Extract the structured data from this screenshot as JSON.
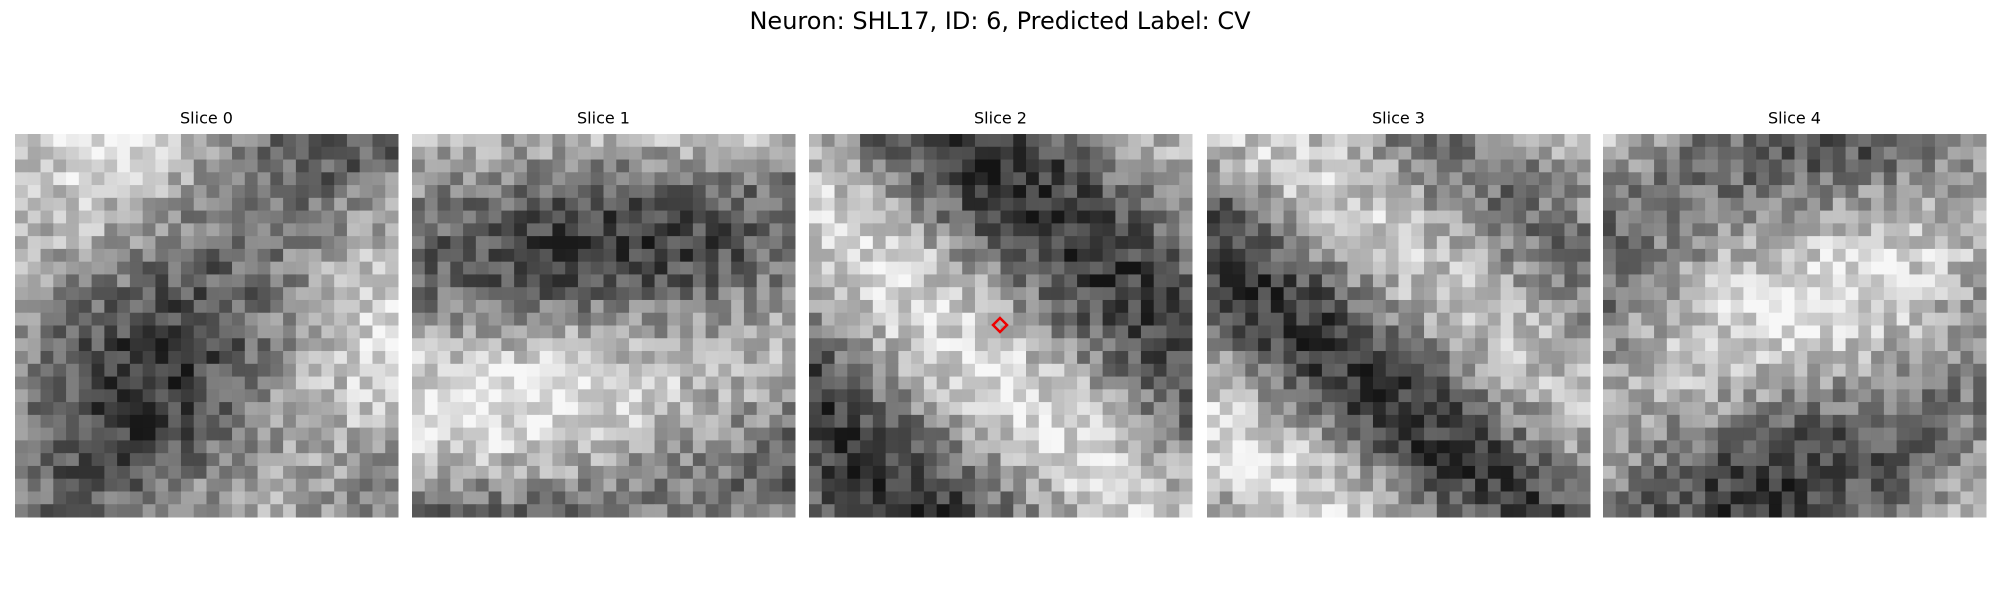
{
  "figure": {
    "title": "Neuron: SHL17, ID: 6, Predicted Label: CV",
    "panels": [
      {
        "title": "Slice 0"
      },
      {
        "title": "Slice 1"
      },
      {
        "title": "Slice 2"
      },
      {
        "title": "Slice 3"
      },
      {
        "title": "Slice 4"
      }
    ]
  }
}
